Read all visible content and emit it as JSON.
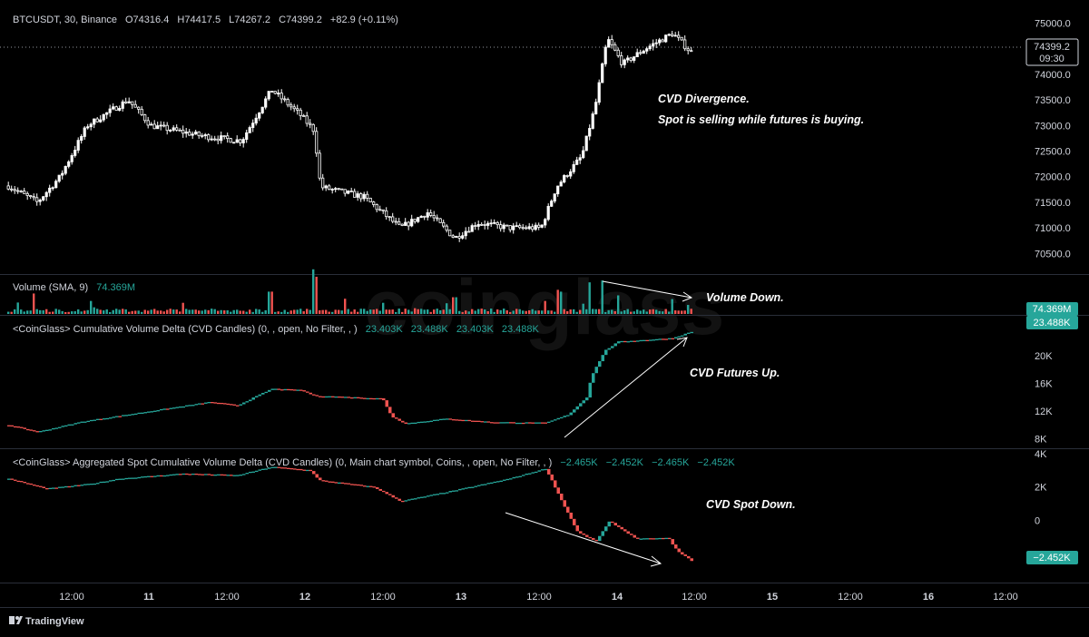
{
  "watermark": "coinglass",
  "footer": {
    "brand": "TradingView"
  },
  "colors": {
    "up": "#26a69a",
    "down": "#ef5350",
    "candle": "#ffffff",
    "bg": "#000000",
    "grid": "#2a2e39"
  },
  "price_pane": {
    "header": {
      "symbol": "BTCUSDT, 30, Binance",
      "open": "O74316.4",
      "high": "H74417.5",
      "low": "L74267.2",
      "close": "C74399.2",
      "change": "+82.9 (+0.11%)"
    },
    "last_label": {
      "price": "74399.2",
      "countdown": "09:30"
    }
  },
  "volume_pane": {
    "header": {
      "title": "Volume (SMA, 9)",
      "value": "74.369M"
    },
    "last_label": "74.369M"
  },
  "cvd_futures_pane": {
    "header": {
      "title": "<CoinGlass> Cumulative Volume Delta (CVD Candles) (0, , open, No Filter, , )",
      "values": [
        "23.403K",
        "23.488K",
        "23.403K",
        "23.488K"
      ]
    },
    "last_label": "23.488K"
  },
  "cvd_spot_pane": {
    "header": {
      "title": "<CoinGlass> Aggregated Spot Cumulative Volume Delta (CVD Candles) (0, Main chart symbol, Coins, , open, No Filter, , )",
      "values": [
        "−2.465K",
        "−2.452K",
        "−2.465K",
        "−2.452K"
      ]
    },
    "last_label": "−2.452K"
  },
  "annotations": {
    "divergence_title": "CVD Divergence.",
    "divergence_body": "Spot is selling while futures is buying.",
    "volume": "Volume Down.",
    "cvd_futures": "CVD Futures Up.",
    "cvd_spot": "CVD Spot Down."
  },
  "chart_data": [
    {
      "type": "candlestick",
      "title": "BTCUSDT, 30, Binance",
      "x_ticks": [
        "12:00",
        "11",
        "12:00",
        "12",
        "12:00",
        "13",
        "12:00",
        "14",
        "12:00",
        "15",
        "12:00",
        "16",
        "12:00"
      ],
      "y_ticks": [
        75000,
        74500,
        74000,
        73500,
        73000,
        72500,
        72000,
        71500,
        71000,
        70500
      ],
      "ylim": [
        70400,
        75150
      ],
      "series_points": [
        [
          0,
          71900
        ],
        [
          40,
          71500
        ],
        [
          65,
          72000
        ],
        [
          95,
          73000
        ],
        [
          140,
          73500
        ],
        [
          165,
          73000
        ],
        [
          220,
          72800
        ],
        [
          265,
          72700
        ],
        [
          298,
          73700
        ],
        [
          330,
          73200
        ],
        [
          345,
          72900
        ],
        [
          352,
          71800
        ],
        [
          400,
          71600
        ],
        [
          440,
          71000
        ],
        [
          470,
          71300
        ],
        [
          500,
          70800
        ],
        [
          525,
          71100
        ],
        [
          560,
          71000
        ],
        [
          595,
          71000
        ],
        [
          612,
          71800
        ],
        [
          640,
          72400
        ],
        [
          655,
          73400
        ],
        [
          668,
          74700
        ],
        [
          685,
          74200
        ],
        [
          710,
          74500
        ],
        [
          740,
          74800
        ],
        [
          762,
          74399.2
        ]
      ],
      "last": 74399.2
    },
    {
      "type": "bar",
      "title": "Volume (SMA, 9)",
      "last": "74.369M",
      "spikes": [
        [
          36,
          0.55
        ],
        [
          100,
          0.35
        ],
        [
          200,
          0.3
        ],
        [
          297,
          0.6
        ],
        [
          346,
          1.0
        ],
        [
          380,
          0.4
        ],
        [
          420,
          0.3
        ],
        [
          500,
          0.45
        ],
        [
          600,
          0.35
        ],
        [
          615,
          0.6
        ],
        [
          648,
          0.85
        ],
        [
          663,
          0.9
        ],
        [
          680,
          0.5
        ],
        [
          740,
          0.4
        ]
      ]
    },
    {
      "type": "line",
      "title": "<CoinGlass> Cumulative Volume Delta (CVD Candles)",
      "y_ticks": [
        20000,
        16000,
        12000,
        8000
      ],
      "ylim": [
        6900,
        25200
      ],
      "series_points": [
        [
          0,
          10200
        ],
        [
          40,
          9000
        ],
        [
          90,
          10500
        ],
        [
          140,
          11500
        ],
        [
          190,
          12500
        ],
        [
          230,
          13300
        ],
        [
          260,
          12800
        ],
        [
          298,
          15200
        ],
        [
          330,
          15000
        ],
        [
          345,
          14200
        ],
        [
          420,
          13800
        ],
        [
          430,
          11200
        ],
        [
          445,
          10200
        ],
        [
          490,
          10900
        ],
        [
          540,
          10400
        ],
        [
          600,
          10300
        ],
        [
          625,
          11500
        ],
        [
          645,
          14000
        ],
        [
          650,
          17000
        ],
        [
          665,
          20700
        ],
        [
          680,
          22000
        ],
        [
          740,
          22500
        ],
        [
          762,
          23488
        ]
      ],
      "last": 23488
    },
    {
      "type": "line",
      "title": "<CoinGlass> Aggregated Spot Cumulative Volume Delta (CVD Candles)",
      "y_ticks": [
        4000,
        2000,
        0,
        -2000
      ],
      "ylim": [
        -3600,
        4150
      ],
      "series_points": [
        [
          0,
          2600
        ],
        [
          50,
          1900
        ],
        [
          100,
          2200
        ],
        [
          130,
          2500
        ],
        [
          200,
          2800
        ],
        [
          260,
          2700
        ],
        [
          298,
          3200
        ],
        [
          340,
          3000
        ],
        [
          350,
          2400
        ],
        [
          410,
          2000
        ],
        [
          440,
          1150
        ],
        [
          500,
          1800
        ],
        [
          560,
          2500
        ],
        [
          600,
          3100
        ],
        [
          618,
          1100
        ],
        [
          635,
          -700
        ],
        [
          655,
          -1250
        ],
        [
          670,
          -50
        ],
        [
          700,
          -1100
        ],
        [
          735,
          -1050
        ],
        [
          745,
          -1850
        ],
        [
          762,
          -2452
        ]
      ],
      "last": -2452
    }
  ]
}
